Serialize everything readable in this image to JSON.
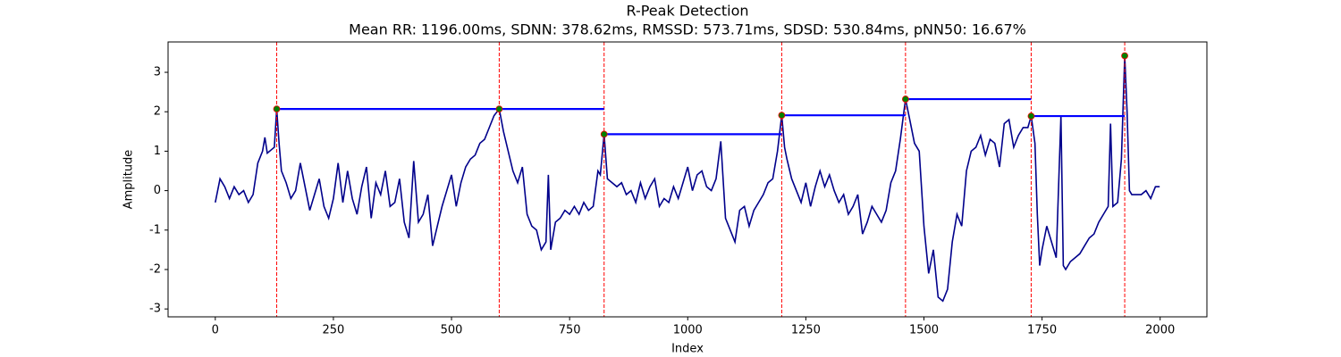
{
  "chart_data": {
    "type": "line",
    "title": "R-Peak Detection",
    "subtitle": "Mean RR: 1196.00ms, SDNN: 378.62ms, RMSSD: 573.71ms, SDSD: 530.84ms, pNN50: 16.67%",
    "xlabel": "Index",
    "ylabel": "Amplitude",
    "color": "#00008b",
    "x": [
      0,
      10,
      20,
      30,
      40,
      50,
      60,
      70,
      80,
      90,
      100,
      105,
      110,
      120,
      125,
      130,
      135,
      140,
      150,
      160,
      170,
      180,
      190,
      200,
      210,
      220,
      230,
      240,
      250,
      260,
      270,
      280,
      290,
      300,
      310,
      320,
      330,
      340,
      350,
      360,
      370,
      380,
      390,
      400,
      410,
      420,
      430,
      440,
      450,
      460,
      470,
      480,
      490,
      500,
      510,
      520,
      530,
      540,
      550,
      560,
      570,
      580,
      590,
      601,
      610,
      620,
      630,
      640,
      650,
      660,
      670,
      680,
      690,
      700,
      705,
      710,
      720,
      730,
      740,
      750,
      760,
      770,
      780,
      790,
      800,
      810,
      815,
      823,
      830,
      840,
      850,
      860,
      870,
      880,
      890,
      900,
      910,
      920,
      930,
      940,
      950,
      960,
      970,
      980,
      990,
      1000,
      1010,
      1020,
      1030,
      1040,
      1050,
      1060,
      1070,
      1080,
      1090,
      1100,
      1110,
      1120,
      1130,
      1140,
      1150,
      1160,
      1170,
      1180,
      1190,
      1199,
      1205,
      1210,
      1220,
      1230,
      1240,
      1250,
      1260,
      1270,
      1280,
      1290,
      1300,
      1310,
      1320,
      1330,
      1340,
      1350,
      1360,
      1370,
      1380,
      1390,
      1400,
      1410,
      1420,
      1430,
      1440,
      1450,
      1461,
      1470,
      1480,
      1490,
      1500,
      1510,
      1520,
      1530,
      1540,
      1550,
      1560,
      1570,
      1580,
      1590,
      1600,
      1610,
      1620,
      1630,
      1640,
      1650,
      1660,
      1670,
      1680,
      1690,
      1700,
      1710,
      1720,
      1727,
      1735,
      1740,
      1745,
      1750,
      1760,
      1770,
      1780,
      1790,
      1795,
      1800,
      1810,
      1820,
      1830,
      1840,
      1850,
      1860,
      1870,
      1880,
      1890,
      1895,
      1900,
      1910,
      1918,
      1925,
      1930,
      1935,
      1940,
      1960,
      1970,
      1980,
      1990,
      1999
    ],
    "values": [
      -0.3,
      0.3,
      0.1,
      -0.2,
      0.1,
      -0.1,
      0.0,
      -0.3,
      -0.1,
      0.7,
      1.0,
      1.35,
      0.95,
      1.05,
      1.1,
      2.07,
      1.2,
      0.5,
      0.2,
      -0.2,
      0.0,
      0.7,
      0.1,
      -0.5,
      -0.1,
      0.3,
      -0.4,
      -0.7,
      -0.2,
      0.7,
      -0.3,
      0.5,
      -0.2,
      -0.6,
      0.1,
      0.6,
      -0.7,
      0.2,
      -0.1,
      0.5,
      -0.4,
      -0.3,
      0.3,
      -0.8,
      -1.2,
      0.75,
      -0.8,
      -0.6,
      -0.1,
      -1.4,
      -0.9,
      -0.4,
      0.0,
      0.4,
      -0.4,
      0.2,
      0.6,
      0.8,
      0.9,
      1.2,
      1.3,
      1.6,
      1.9,
      2.07,
      1.5,
      1.0,
      0.5,
      0.2,
      0.6,
      -0.6,
      -0.9,
      -1.0,
      -1.5,
      -1.3,
      0.4,
      -1.5,
      -0.8,
      -0.7,
      -0.5,
      -0.6,
      -0.4,
      -0.6,
      -0.3,
      -0.5,
      -0.4,
      0.5,
      0.4,
      1.43,
      0.3,
      0.2,
      0.1,
      0.2,
      -0.1,
      0.0,
      -0.3,
      0.2,
      -0.2,
      0.1,
      0.3,
      -0.4,
      -0.2,
      -0.3,
      0.1,
      -0.2,
      0.2,
      0.6,
      0.0,
      0.4,
      0.5,
      0.1,
      0.0,
      0.3,
      1.25,
      -0.7,
      -1.0,
      -1.3,
      -0.5,
      -0.4,
      -0.9,
      -0.5,
      -0.3,
      -0.1,
      0.2,
      0.3,
      1.0,
      1.91,
      1.1,
      0.8,
      0.3,
      0.0,
      -0.3,
      0.2,
      -0.4,
      0.1,
      0.5,
      0.1,
      0.4,
      0.0,
      -0.3,
      -0.1,
      -0.6,
      -0.4,
      -0.1,
      -1.1,
      -0.8,
      -0.4,
      -0.6,
      -0.8,
      -0.5,
      0.2,
      0.5,
      1.3,
      2.32,
      1.8,
      1.2,
      1.0,
      -0.9,
      -2.1,
      -1.5,
      -2.7,
      -2.8,
      -2.5,
      -1.3,
      -0.6,
      -0.9,
      0.5,
      1.0,
      1.1,
      1.4,
      0.9,
      1.3,
      1.2,
      0.6,
      1.7,
      1.8,
      1.1,
      1.4,
      1.6,
      1.6,
      1.89,
      1.2,
      -0.6,
      -1.9,
      -1.5,
      -0.9,
      -1.3,
      -1.7,
      1.9,
      -1.9,
      -2.0,
      -1.8,
      -1.7,
      -1.6,
      -1.4,
      -1.2,
      -1.1,
      -0.8,
      -0.6,
      -0.4,
      1.7,
      -0.4,
      -0.3,
      0.8,
      3.42,
      2.0,
      0.0,
      -0.1,
      -0.1,
      0.0,
      -0.2,
      0.1,
      0.1
    ],
    "peaks": {
      "x": [
        130,
        601,
        823,
        1199,
        1461,
        1727,
        1925
      ],
      "values": [
        2.07,
        2.07,
        1.43,
        1.91,
        2.32,
        1.89,
        3.42
      ],
      "color": "#008000",
      "edge_color": "#ff0000"
    },
    "peak_line_color": "#ff0000",
    "interval_color": "#0000ff",
    "xlim": [
      -99.95,
      2098.95
    ],
    "ylim": [
      -3.2,
      3.77
    ],
    "xticks": [
      0,
      250,
      500,
      750,
      1000,
      1250,
      1500,
      1750,
      2000
    ],
    "yticks": [
      -3,
      -2,
      -1,
      0,
      1,
      2,
      3
    ]
  }
}
